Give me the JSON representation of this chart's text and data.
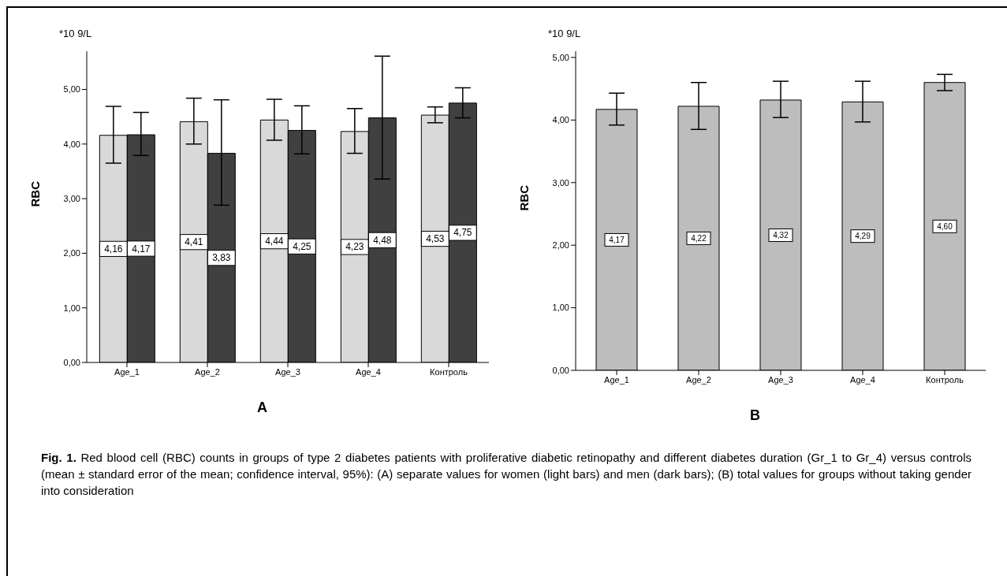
{
  "chart_data": [
    {
      "type": "bar",
      "title": "A",
      "ylabel": "RBC",
      "annotations": [
        "*10 9/L"
      ],
      "categories": [
        "Age_1",
        "Age_2",
        "Age_3",
        "Age_4",
        "Контроль"
      ],
      "ylim": [
        0,
        5.7
      ],
      "yticks": [
        {
          "value": 0,
          "label": "0,00"
        },
        {
          "value": 1,
          "label": "1,00"
        },
        {
          "value": 2,
          "label": "2,00"
        },
        {
          "value": 3,
          "label": "3,00"
        },
        {
          "value": 4,
          "label": "4,00"
        },
        {
          "value": 5,
          "label": "5,00"
        }
      ],
      "series": [
        {
          "color": "#d9d9d9",
          "values": [
            4.16,
            4.41,
            4.44,
            4.23,
            4.53
          ],
          "value_labels": [
            "4,16",
            "4,41",
            "4,44",
            "4,23",
            "4,53"
          ],
          "errors": [
            [
              3.65,
              4.69
            ],
            [
              4.0,
              4.84
            ],
            [
              4.07,
              4.82
            ],
            [
              3.83,
              4.65
            ],
            [
              4.39,
              4.68
            ]
          ]
        },
        {
          "color": "#404040",
          "values": [
            4.17,
            3.83,
            4.25,
            4.48,
            4.75
          ],
          "value_labels": [
            "4,17",
            "3,83",
            "4,25",
            "4,48",
            "4,75"
          ],
          "errors": [
            [
              3.79,
              4.58
            ],
            [
              2.88,
              4.81
            ],
            [
              3.82,
              4.7
            ],
            [
              3.36,
              5.61
            ],
            [
              4.48,
              5.03
            ]
          ]
        }
      ]
    },
    {
      "type": "bar",
      "title": "B",
      "ylabel": "RBC",
      "annotations": [
        "*10 9/L"
      ],
      "categories": [
        "Age_1",
        "Age_2",
        "Age_3",
        "Age_4",
        "Контроль"
      ],
      "ylim": [
        0,
        5.1
      ],
      "yticks": [
        {
          "value": 0,
          "label": "0,00"
        },
        {
          "value": 1,
          "label": "1,00"
        },
        {
          "value": 2,
          "label": "2,00"
        },
        {
          "value": 3,
          "label": "3,00"
        },
        {
          "value": 4,
          "label": "4,00"
        },
        {
          "value": 5,
          "label": "5,00"
        }
      ],
      "series": [
        {
          "color": "#bdbdbd",
          "values": [
            4.17,
            4.22,
            4.32,
            4.29,
            4.6
          ],
          "value_labels": [
            "4,17",
            "4,22",
            "4,32",
            "4,29",
            "4,60"
          ],
          "errors": [
            [
              3.92,
              4.43
            ],
            [
              3.85,
              4.6
            ],
            [
              4.04,
              4.62
            ],
            [
              3.97,
              4.62
            ],
            [
              4.47,
              4.73
            ]
          ]
        }
      ]
    },
    {
      "type": "other",
      "annotations": [
        "Fig. 1.",
        "Red blood cell (RBC) counts in groups of type 2 diabetes patients with proliferative diabetic retinopathy and different diabetes duration (Gr_1 to Gr_4) versus controls (mean ± standard error of the mean; confidence interval, 95%): (A) separate values for women (light bars) and men (dark bars); (B) total values for groups without taking gender into consideration"
      ]
    }
  ]
}
